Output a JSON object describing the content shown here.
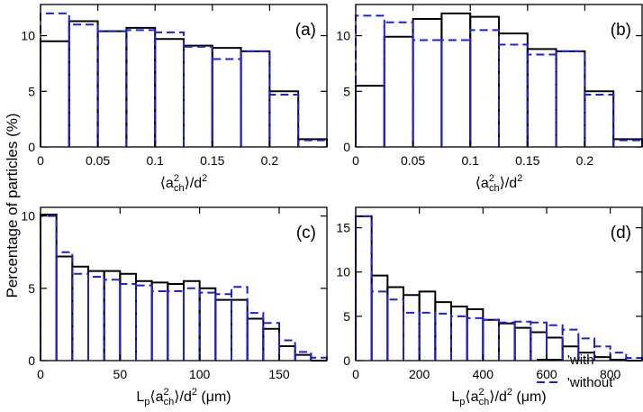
{
  "figure": {
    "ylabel": "Percentage of particles (%)",
    "legend": [
      {
        "label": "'with'",
        "color": "#000000",
        "style": "solid"
      },
      {
        "label": "'without'",
        "color": "#1f1fe0",
        "style": "dashed"
      }
    ]
  },
  "chart_data": [
    {
      "type": "bar",
      "panel": "(a)",
      "xlabel_main": "⟨a",
      "xlabel_sup": "2",
      "xlabel_sub": "ch",
      "xlabel_rest": "⟩/d",
      "xlabel_sup2": "2",
      "xlim": [
        0,
        0.25
      ],
      "ylim": [
        0,
        12.8
      ],
      "xticks": [
        0,
        0.05,
        0.1,
        0.15,
        0.2
      ],
      "xtick_labels": [
        "0",
        "0.05",
        "0.1",
        "0.15",
        "0.2"
      ],
      "yticks": [
        0,
        5,
        10
      ],
      "ytick_labels": [
        "0",
        "5",
        "10"
      ],
      "bin_edges": [
        0,
        0.025,
        0.05,
        0.075,
        0.1,
        0.125,
        0.15,
        0.175,
        0.2,
        0.225,
        0.25
      ],
      "series": [
        {
          "name": "'with'",
          "values": [
            9.5,
            11.3,
            10.4,
            10.7,
            9.7,
            9.1,
            8.9,
            8.6,
            5.0,
            0.7
          ]
        },
        {
          "name": "'without'",
          "values": [
            12.0,
            11.0,
            10.4,
            10.5,
            10.3,
            9.0,
            7.9,
            8.6,
            4.7,
            0.6
          ]
        }
      ]
    },
    {
      "type": "bar",
      "panel": "(b)",
      "xlabel_main": "⟨a",
      "xlabel_sup": "2",
      "xlabel_sub": "ch",
      "xlabel_rest": "⟩/d",
      "xlabel_sup2": "2",
      "xlim": [
        0,
        0.25
      ],
      "ylim": [
        0,
        12.8
      ],
      "xticks": [
        0,
        0.05,
        0.1,
        0.15,
        0.2
      ],
      "xtick_labels": [
        "0",
        "0.05",
        "0.1",
        "0.15",
        "0.2"
      ],
      "yticks": [
        0,
        5,
        10
      ],
      "ytick_labels": [
        "0",
        "5",
        "10"
      ],
      "bin_edges": [
        0,
        0.025,
        0.05,
        0.075,
        0.1,
        0.125,
        0.15,
        0.175,
        0.2,
        0.225,
        0.25
      ],
      "series": [
        {
          "name": "'with'",
          "values": [
            5.5,
            9.9,
            11.5,
            12.0,
            11.7,
            10.2,
            8.8,
            8.6,
            5.0,
            0.7
          ]
        },
        {
          "name": "'without'",
          "values": [
            11.8,
            11.2,
            9.6,
            9.6,
            10.5,
            9.2,
            8.3,
            8.6,
            4.7,
            0.6
          ]
        }
      ]
    },
    {
      "type": "bar",
      "panel": "(c)",
      "xlabel_main": "L",
      "xlabel_sub0": "p",
      "xlabel_mid": "⟨a",
      "xlabel_sup": "2",
      "xlabel_sub": "ch",
      "xlabel_rest": "⟩/d",
      "xlabel_sup2": "2",
      "xlabel_unit": " (μm)",
      "xlim": [
        0,
        180
      ],
      "ylim": [
        0,
        10.6
      ],
      "xticks": [
        0,
        50,
        100,
        150
      ],
      "xtick_labels": [
        "0",
        "50",
        "100",
        "150"
      ],
      "yticks": [
        0,
        5,
        10
      ],
      "ytick_labels": [
        "0",
        "5",
        "10"
      ],
      "bin_edges": [
        0,
        10,
        20,
        30,
        40,
        50,
        60,
        70,
        80,
        90,
        100,
        110,
        120,
        130,
        140,
        150,
        160,
        170,
        180
      ],
      "series": [
        {
          "name": "'with'",
          "values": [
            10.1,
            7.2,
            6.5,
            6.2,
            6.2,
            6.0,
            5.5,
            5.4,
            5.3,
            5.5,
            5.0,
            4.2,
            4.2,
            2.9,
            2.2,
            1.0,
            0.4,
            0.0
          ]
        },
        {
          "name": "'without'",
          "values": [
            10.0,
            7.5,
            6.0,
            5.8,
            5.6,
            5.3,
            5.2,
            4.8,
            4.8,
            5.0,
            4.7,
            4.6,
            5.1,
            3.3,
            2.6,
            1.4,
            0.6,
            0.2
          ]
        }
      ]
    },
    {
      "type": "bar",
      "panel": "(d)",
      "xlabel_main": "L",
      "xlabel_sub0": "p",
      "xlabel_mid": "⟨a",
      "xlabel_sup": "2",
      "xlabel_sub": "ch",
      "xlabel_rest": "⟩/d",
      "xlabel_sup2": "2",
      "xlabel_unit": " (μm)",
      "xlim": [
        0,
        900
      ],
      "ylim": [
        0,
        17.3
      ],
      "xticks": [
        0,
        200,
        400,
        600,
        800
      ],
      "xtick_labels": [
        "0",
        "200",
        "400",
        "600",
        "800"
      ],
      "yticks": [
        0,
        5,
        10,
        15
      ],
      "ytick_labels": [
        "0",
        "5",
        "10",
        "15"
      ],
      "bin_edges": [
        0,
        50,
        100,
        150,
        200,
        250,
        300,
        350,
        400,
        450,
        500,
        550,
        600,
        650,
        700,
        750,
        800,
        850,
        900
      ],
      "series": [
        {
          "name": "'with'",
          "values": [
            16.3,
            9.6,
            8.3,
            7.4,
            7.8,
            6.6,
            6.1,
            5.8,
            4.6,
            4.2,
            3.7,
            3.2,
            2.6,
            1.6,
            0.9,
            0.4,
            0.1,
            0.0
          ]
        },
        {
          "name": "'without'",
          "values": [
            16.3,
            7.8,
            6.9,
            5.4,
            5.4,
            5.3,
            5.0,
            4.8,
            4.6,
            4.3,
            4.4,
            4.3,
            4.0,
            3.5,
            2.5,
            1.6,
            0.9,
            0.3
          ]
        }
      ]
    }
  ]
}
